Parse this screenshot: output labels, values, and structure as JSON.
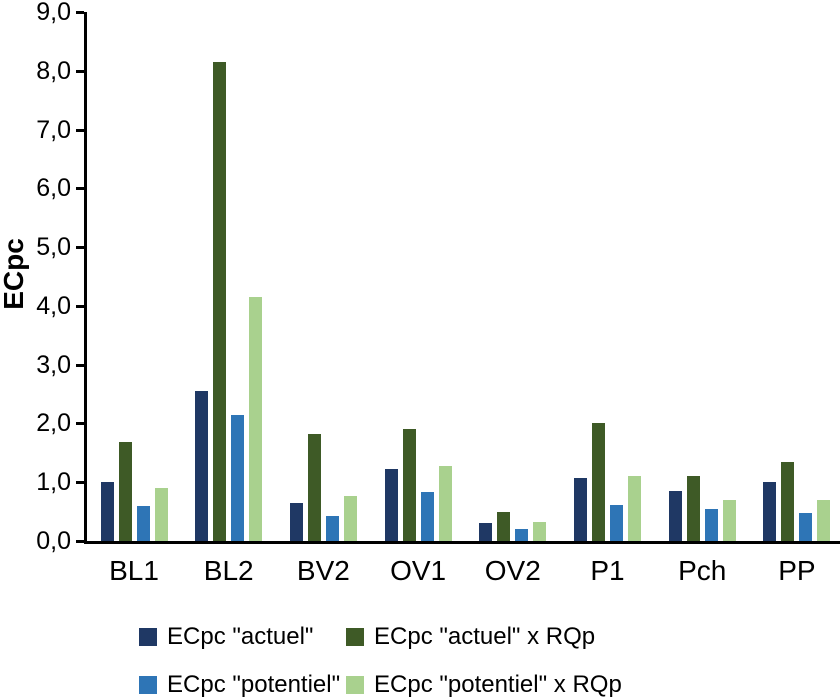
{
  "chart_data": {
    "type": "bar",
    "title": "",
    "xlabel": "",
    "ylabel": "ECpc",
    "ylim": [
      0,
      9
    ],
    "ytick_step": 1,
    "ytick_labels": [
      "0,0",
      "1,0",
      "2,0",
      "3,0",
      "4,0",
      "5,0",
      "6,0",
      "7,0",
      "8,0",
      "9,0"
    ],
    "grid": false,
    "legend_position": "bottom",
    "categories": [
      "BL1",
      "BL2",
      "BV2",
      "OV1",
      "OV2",
      "P1",
      "Pch",
      "PP"
    ],
    "series": [
      {
        "name": "ECpc \"actuel\"",
        "color": "#1f3864",
        "values": [
          1.0,
          2.55,
          0.65,
          1.23,
          0.3,
          1.08,
          0.85,
          1.0
        ]
      },
      {
        "name": "ECpc \"actuel\" x RQp",
        "color": "#3e5a26",
        "values": [
          1.68,
          8.15,
          1.82,
          1.9,
          0.5,
          2.0,
          1.1,
          1.35
        ]
      },
      {
        "name": "ECpc \"potentiel\"",
        "color": "#2e75b6",
        "values": [
          0.6,
          2.15,
          0.43,
          0.83,
          0.21,
          0.62,
          0.55,
          0.48
        ]
      },
      {
        "name": "ECpc \"potentiel\" x RQp",
        "color": "#a9d18e",
        "values": [
          0.9,
          4.15,
          0.77,
          1.28,
          0.32,
          1.1,
          0.7,
          0.7
        ]
      }
    ]
  }
}
